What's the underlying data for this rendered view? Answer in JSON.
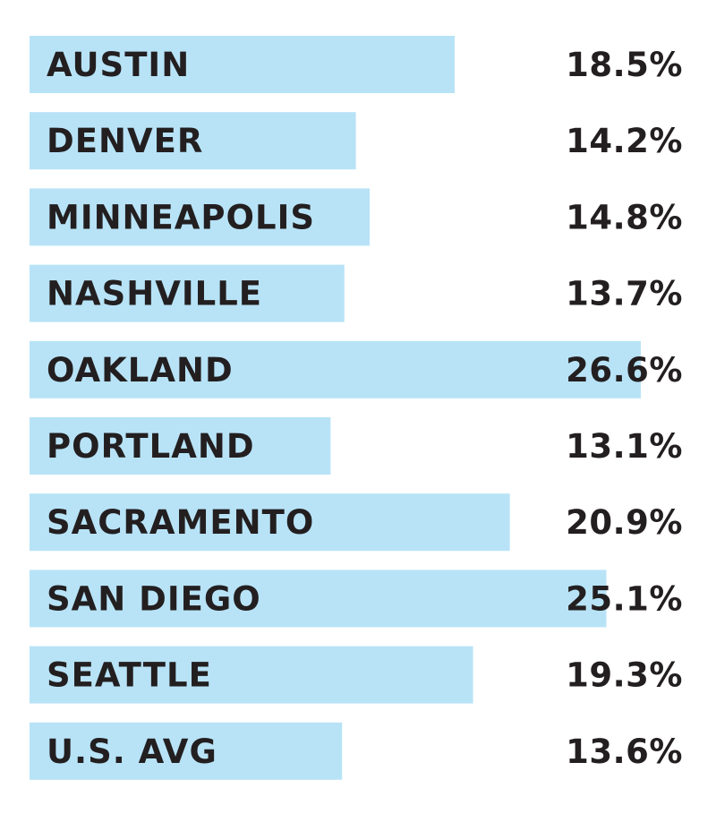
{
  "chart_data": {
    "type": "bar",
    "orientation": "horizontal",
    "categories": [
      "AUSTIN",
      "DENVER",
      "MINNEAPOLIS",
      "NASHVILLE",
      "OAKLAND",
      "PORTLAND",
      "SACRAMENTO",
      "SAN DIEGO",
      "SEATTLE",
      "U.S. AVG"
    ],
    "values": [
      18.5,
      14.2,
      14.8,
      13.7,
      26.6,
      13.1,
      20.9,
      25.1,
      19.3,
      13.6
    ],
    "value_labels": [
      "18.5%",
      "14.2%",
      "14.8%",
      "13.7%",
      "26.6%",
      "13.1%",
      "20.9%",
      "25.1%",
      "19.3%",
      "13.6%"
    ],
    "unit": "%",
    "xlim": [
      0,
      26.6
    ],
    "grid": false,
    "legend": "none",
    "title": "",
    "xlabel": "",
    "ylabel": "",
    "bar_color": "#b8e3f7",
    "text_color": "#231f20"
  }
}
